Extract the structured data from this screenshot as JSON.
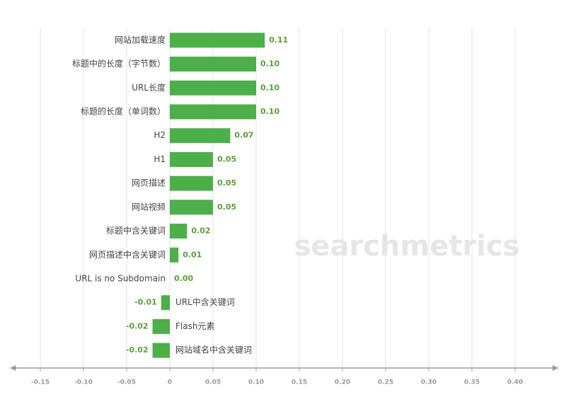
{
  "chart_data": {
    "type": "barh",
    "categories": [
      "网站加载速度",
      "标题中的长度（字节数）",
      "URL长度",
      "标题的长度（单词数）",
      "H2",
      "H1",
      "网页描述",
      "网站视频",
      "标题中含关键词",
      "网页描述中含关键词",
      "URL is no Subdomain",
      "URL中含关键词",
      "Flash元素",
      "网站域名中含关键词"
    ],
    "values": [
      0.11,
      0.1,
      0.1,
      0.1,
      0.07,
      0.05,
      0.05,
      0.05,
      0.02,
      0.01,
      0.0,
      -0.01,
      -0.02,
      -0.02
    ],
    "value_labels": [
      "0.11",
      "0.10",
      "0.10",
      "0.10",
      "0.07",
      "0.05",
      "0.05",
      "0.05",
      "0.02",
      "0.01",
      "0.00",
      "-0.01",
      "-0.02",
      "-0.02"
    ],
    "color": "#4caf4a",
    "xlim": [
      -0.185,
      0.45
    ],
    "xticks": [
      -0.15,
      {
        "value": -0.1,
        "label": "-0.10"
      },
      -0.05,
      0,
      0.05,
      {
        "value": 0.1,
        "label": "0.10"
      },
      0.15,
      {
        "value": 0.2,
        "label": "0.20"
      },
      0.25,
      {
        "value": 0.3,
        "label": "0.30"
      },
      0.35,
      {
        "value": 0.4,
        "label": "0.40"
      }
    ],
    "grid": true,
    "watermark": "searchmetrics"
  }
}
